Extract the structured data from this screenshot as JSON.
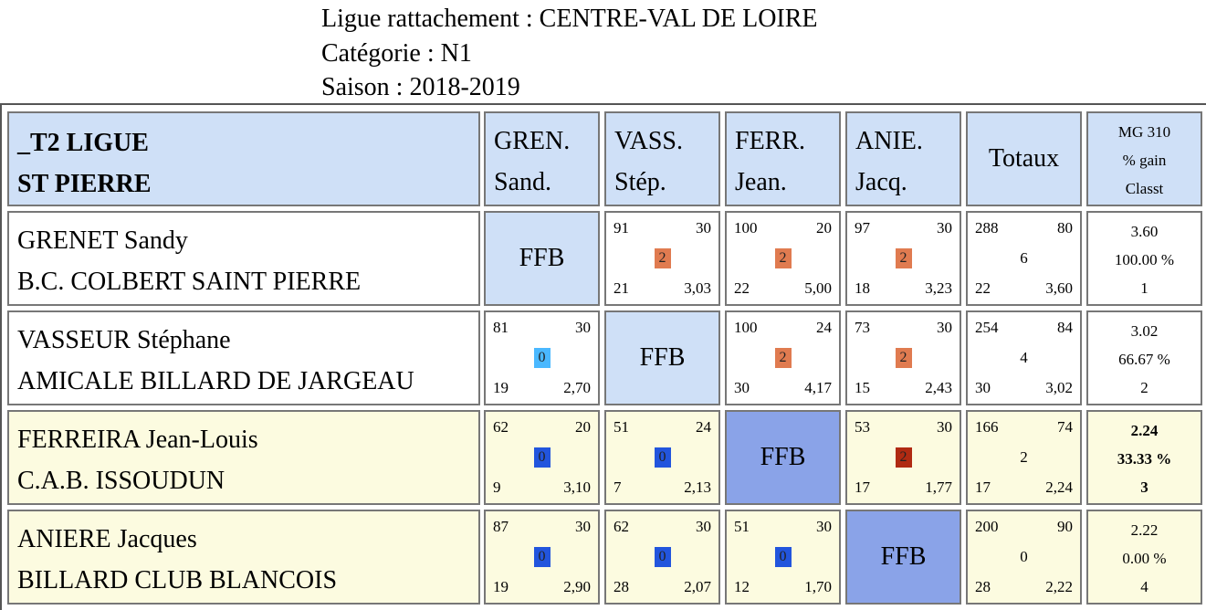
{
  "header": {
    "ligue": "Ligue rattachement : CENTRE-VAL DE LOIRE",
    "categorie": "Catégorie : N1",
    "saison": "Saison : 2018-2019"
  },
  "table": {
    "title_line1": "_T2 LIGUE",
    "title_line2": "ST PIERRE",
    "col_heads": [
      {
        "l1": "GREN.",
        "l2": "Sand."
      },
      {
        "l1": "VASS.",
        "l2": "Stép."
      },
      {
        "l1": "FERR.",
        "l2": "Jean."
      },
      {
        "l1": "ANIE.",
        "l2": "Jacq."
      }
    ],
    "totaux": "Totaux",
    "mg_head": [
      "MG 310",
      "% gain",
      "Classt"
    ],
    "ffb": "FFB",
    "rows": [
      {
        "name": "GRENET Sandy",
        "club": "B.C. COLBERT SAINT PIERRE",
        "cells": [
          null,
          {
            "tl": "91",
            "tr": "30",
            "badge": "2",
            "bl": "21",
            "br": "3,03"
          },
          {
            "tl": "100",
            "tr": "20",
            "badge": "2",
            "bl": "22",
            "br": "5,00"
          },
          {
            "tl": "97",
            "tr": "30",
            "badge": "2",
            "bl": "18",
            "br": "3,23"
          }
        ],
        "totals": {
          "tl": "288",
          "tr": "80",
          "mid": "6",
          "bl": "22",
          "br": "3,60"
        },
        "result": {
          "mg": "3.60",
          "pct": "100.00 %",
          "rank": "1"
        }
      },
      {
        "name": "VASSEUR Stéphane",
        "club": "AMICALE BILLARD DE JARGEAU",
        "cells": [
          {
            "tl": "81",
            "tr": "30",
            "badge": "0",
            "bl": "19",
            "br": "2,70"
          },
          null,
          {
            "tl": "100",
            "tr": "24",
            "badge": "2",
            "bl": "30",
            "br": "4,17"
          },
          {
            "tl": "73",
            "tr": "30",
            "badge": "2",
            "bl": "15",
            "br": "2,43"
          }
        ],
        "totals": {
          "tl": "254",
          "tr": "84",
          "mid": "4",
          "bl": "30",
          "br": "3,02"
        },
        "result": {
          "mg": "3.02",
          "pct": "66.67 %",
          "rank": "2"
        }
      },
      {
        "name": "FERREIRA Jean-Louis",
        "club": "C.A.B. ISSOUDUN",
        "cells": [
          {
            "tl": "62",
            "tr": "20",
            "badge": "0",
            "bl": "9",
            "br": "3,10"
          },
          {
            "tl": "51",
            "tr": "24",
            "badge": "0",
            "bl": "7",
            "br": "2,13"
          },
          null,
          {
            "tl": "53",
            "tr": "30",
            "badge": "2",
            "bl": "17",
            "br": "1,77"
          }
        ],
        "totals": {
          "tl": "166",
          "tr": "74",
          "mid": "2",
          "bl": "17",
          "br": "2,24"
        },
        "result": {
          "mg": "2.24",
          "pct": "33.33 %",
          "rank": "3"
        }
      },
      {
        "name": "ANIERE Jacques",
        "club": "BILLARD CLUB BLANCOIS",
        "cells": [
          {
            "tl": "87",
            "tr": "30",
            "badge": "0",
            "bl": "19",
            "br": "2,90"
          },
          {
            "tl": "62",
            "tr": "30",
            "badge": "0",
            "bl": "28",
            "br": "2,07"
          },
          {
            "tl": "51",
            "tr": "30",
            "badge": "0",
            "bl": "12",
            "br": "1,70"
          },
          null
        ],
        "totals": {
          "tl": "200",
          "tr": "90",
          "mid": "0",
          "bl": "28",
          "br": "2,22"
        },
        "result": {
          "mg": "2.22",
          "pct": "0.00 %",
          "rank": "4"
        }
      }
    ]
  },
  "colors": {
    "header_blue": "#cfe0f7",
    "row_yellow": "#fcfbe0",
    "ffb_dark": "#8aa3e8",
    "badge_win": "#e07b50",
    "badge_win_dark": "#b02a12",
    "badge_loss_light": "#4ab8ff",
    "badge_loss": "#2255dd"
  }
}
